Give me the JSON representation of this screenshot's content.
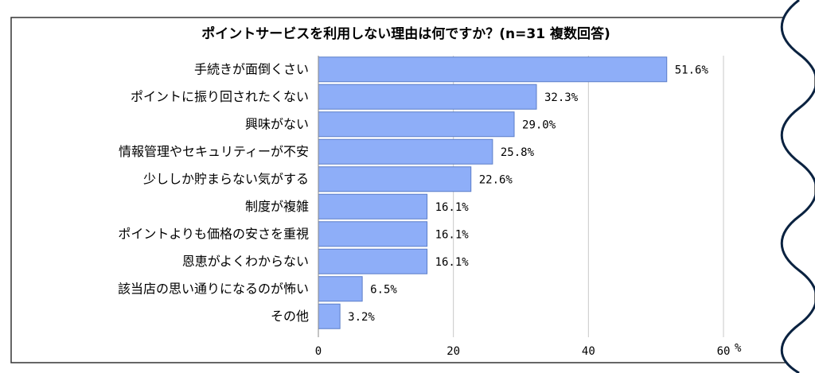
{
  "chart_data": {
    "type": "bar",
    "orientation": "horizontal",
    "title": "ポイントサービスを利用しない理由は何ですか？(n=31 複数回答)",
    "categories": [
      "手続きが面倒くさい",
      "ポイントに振り回されたくない",
      "興味がない",
      "情報管理やセキュリティーが不安",
      "少ししか貯まらない気がする",
      "制度が複雑",
      "ポイントよりも価格の安さを重視",
      "恩恵がよくわからない",
      "該当店の思い通りになるのが怖い",
      "その他"
    ],
    "values": [
      51.6,
      32.3,
      29.0,
      25.8,
      22.6,
      16.1,
      16.1,
      16.1,
      6.5,
      3.2
    ],
    "value_labels": [
      "51.6%",
      "32.3%",
      "29.0%",
      "25.8%",
      "22.6%",
      "16.1%",
      "16.1%",
      "16.1%",
      "6.5%",
      "3.2%"
    ],
    "xlim": [
      0,
      60
    ],
    "xticks": [
      "0",
      "20",
      "40",
      "60"
    ],
    "xunit": "%",
    "grid": true,
    "bar_color": "#8eaef8",
    "bar_edge_color": "#5b7ec9"
  }
}
